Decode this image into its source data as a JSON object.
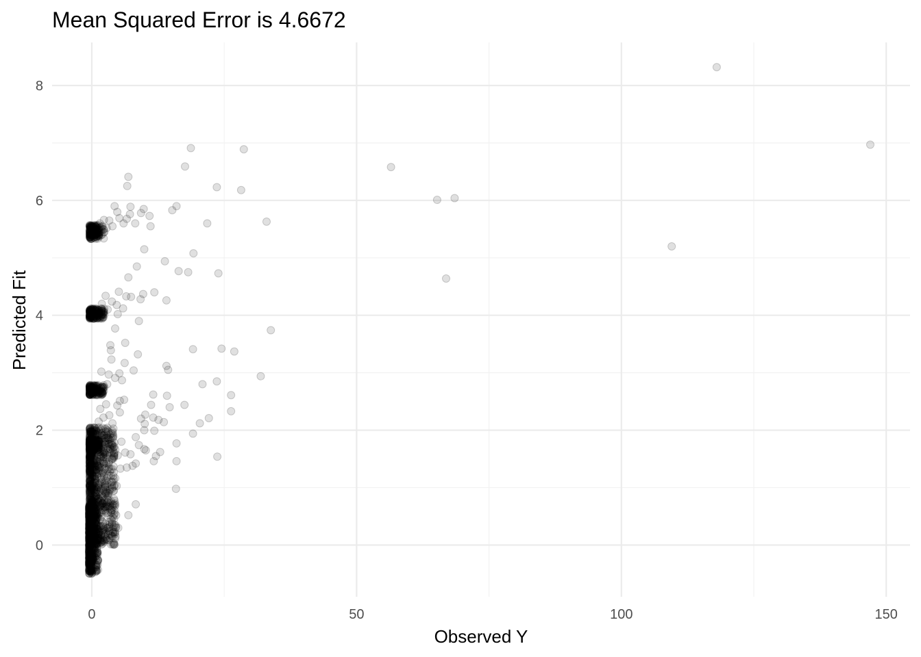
{
  "chart_data": {
    "type": "scatter",
    "title": "Mean Squared Error is 4.6672",
    "xlabel": "Observed Y",
    "ylabel": "Predicted Fit",
    "xlim": [
      -7.5,
      154.5
    ],
    "ylim": [
      -0.9,
      8.75
    ],
    "x_ticks": [
      0,
      50,
      100,
      150
    ],
    "y_ticks": [
      0,
      2,
      4,
      6,
      8
    ],
    "x_tick_labels": [
      "0",
      "50",
      "100",
      "150"
    ],
    "y_tick_labels": [
      "0",
      "2",
      "4",
      "6",
      "8"
    ],
    "grid": true,
    "point_color": "#000000",
    "point_alpha": 0.12,
    "points": [
      [
        118,
        8.32
      ],
      [
        147,
        6.97
      ],
      [
        109.5,
        5.2
      ],
      [
        56.5,
        6.58
      ],
      [
        65.2,
        6.01
      ],
      [
        68.5,
        6.04
      ],
      [
        66.9,
        4.64
      ],
      [
        18.7,
        6.91
      ],
      [
        28.7,
        6.89
      ],
      [
        17.6,
        6.59
      ],
      [
        23.6,
        6.23
      ],
      [
        28.2,
        6.18
      ],
      [
        6.9,
        6.41
      ],
      [
        6.7,
        6.25
      ],
      [
        33,
        5.63
      ],
      [
        21.8,
        5.6
      ],
      [
        4.3,
        5.9
      ],
      [
        7.3,
        5.89
      ],
      [
        9.8,
        5.85
      ],
      [
        16,
        5.9
      ],
      [
        15.2,
        5.83
      ],
      [
        6,
        5.6
      ],
      [
        8.2,
        5.6
      ],
      [
        11.1,
        5.55
      ],
      [
        9.3,
        5.78
      ],
      [
        10.9,
        5.73
      ],
      [
        7.2,
        5.76
      ],
      [
        4.8,
        5.8
      ],
      [
        2.3,
        5.66
      ],
      [
        3.3,
        5.65
      ],
      [
        1.5,
        5.6
      ],
      [
        5.2,
        5.69
      ],
      [
        2.8,
        5.52
      ],
      [
        6.6,
        5.68
      ],
      [
        3.9,
        5.55
      ],
      [
        9.9,
        5.15
      ],
      [
        19.2,
        5.08
      ],
      [
        13.8,
        4.94
      ],
      [
        8.5,
        4.85
      ],
      [
        16.4,
        4.77
      ],
      [
        18.2,
        4.75
      ],
      [
        23.9,
        4.73
      ],
      [
        6.9,
        4.66
      ],
      [
        5.1,
        4.41
      ],
      [
        7.4,
        4.32
      ],
      [
        9.7,
        4.37
      ],
      [
        11.8,
        4.4
      ],
      [
        14.1,
        4.26
      ],
      [
        9.2,
        4.28
      ],
      [
        6.5,
        4.33
      ],
      [
        2.6,
        4.34
      ],
      [
        3.8,
        4.24
      ],
      [
        4.7,
        4.18
      ],
      [
        5.9,
        4.12
      ],
      [
        1.9,
        4.2
      ],
      [
        4.9,
        4.02
      ],
      [
        3,
        4.1
      ],
      [
        8.9,
        3.9
      ],
      [
        4.4,
        3.77
      ],
      [
        33.8,
        3.74
      ],
      [
        6.3,
        3.52
      ],
      [
        3.5,
        3.48
      ],
      [
        3.6,
        3.39
      ],
      [
        19.1,
        3.41
      ],
      [
        24.5,
        3.42
      ],
      [
        26.9,
        3.37
      ],
      [
        8.7,
        3.32
      ],
      [
        3.7,
        3.23
      ],
      [
        6.2,
        3.17
      ],
      [
        14.1,
        3.12
      ],
      [
        14.4,
        3.05
      ],
      [
        7.9,
        3.04
      ],
      [
        5.2,
        2.99
      ],
      [
        3.2,
        2.97
      ],
      [
        1.8,
        3.02
      ],
      [
        4.4,
        2.91
      ],
      [
        31.9,
        2.94
      ],
      [
        23.6,
        2.85
      ],
      [
        20.9,
        2.8
      ],
      [
        5.7,
        2.87
      ],
      [
        2.9,
        2.8
      ],
      [
        1.5,
        2.68
      ],
      [
        11.6,
        2.62
      ],
      [
        14.2,
        2.6
      ],
      [
        26.3,
        2.61
      ],
      [
        6.1,
        2.53
      ],
      [
        5.3,
        2.51
      ],
      [
        2.7,
        2.45
      ],
      [
        17.5,
        2.44
      ],
      [
        11.2,
        2.44
      ],
      [
        14.7,
        2.4
      ],
      [
        4.8,
        2.43
      ],
      [
        26.3,
        2.33
      ],
      [
        5.3,
        2.31
      ],
      [
        1.6,
        2.37
      ],
      [
        10.1,
        2.27
      ],
      [
        11.6,
        2.22
      ],
      [
        12.6,
        2.18
      ],
      [
        13.6,
        2.14
      ],
      [
        9.3,
        2.2
      ],
      [
        22.1,
        2.21
      ],
      [
        20.4,
        2.12
      ],
      [
        3.3,
        2.26
      ],
      [
        2.2,
        2.22
      ],
      [
        3.9,
        2.12
      ],
      [
        1.3,
        2.15
      ],
      [
        10,
        2.11
      ],
      [
        11.8,
        1.99
      ],
      [
        9.9,
        2
      ],
      [
        19.1,
        1.94
      ],
      [
        8.3,
        1.88
      ],
      [
        8.9,
        1.74
      ],
      [
        5.6,
        1.8
      ],
      [
        16,
        1.77
      ],
      [
        3.4,
        1.83
      ],
      [
        2.6,
        1.76
      ],
      [
        9.9,
        1.67
      ],
      [
        10.2,
        1.65
      ],
      [
        12.9,
        1.62
      ],
      [
        12.1,
        1.55
      ],
      [
        7.3,
        1.58
      ],
      [
        6.3,
        1.61
      ],
      [
        4.9,
        1.56
      ],
      [
        23.7,
        1.54
      ],
      [
        16,
        1.46
      ],
      [
        11.7,
        1.46
      ],
      [
        8.3,
        1.42
      ],
      [
        7.7,
        1.38
      ],
      [
        6.6,
        1.35
      ],
      [
        5.4,
        1.33
      ],
      [
        4.1,
        1.37
      ],
      [
        2.2,
        1.42
      ],
      [
        3.2,
        1.22
      ],
      [
        4.7,
        1.03
      ],
      [
        2.7,
        1.12
      ],
      [
        15.9,
        0.98
      ],
      [
        8.3,
        0.71
      ],
      [
        2.5,
        0.66
      ],
      [
        4.6,
        0.52
      ],
      [
        6.9,
        0.52
      ],
      [
        3.6,
        0.57
      ],
      [
        2.1,
        0.4
      ],
      [
        4.6,
        0.31
      ],
      [
        5,
        0.3
      ],
      [
        4.4,
        0.22
      ],
      [
        4.5,
        0.15
      ],
      [
        3,
        0.3
      ],
      [
        2.2,
        0.22
      ],
      [
        1.5,
        0.1
      ]
    ],
    "dense_clusters": [
      {
        "x_range": [
          -0.4,
          2.4
        ],
        "y_center": 5.45,
        "y_spread": 0.12
      },
      {
        "x_range": [
          -0.4,
          2.4
        ],
        "y_center": 4.03,
        "y_spread": 0.09
      },
      {
        "x_range": [
          -0.4,
          2.4
        ],
        "y_center": 2.7,
        "y_spread": 0.09
      },
      {
        "x_range": [
          -0.4,
          1.6
        ],
        "y_center": 1.75,
        "y_spread": 0.1
      },
      {
        "x_range": [
          -0.4,
          4.5
        ],
        "y_range": [
          0.0,
          2.05
        ]
      },
      {
        "x_range": [
          -0.5,
          1.2
        ],
        "y_range": [
          -0.5,
          0.7
        ]
      }
    ]
  }
}
